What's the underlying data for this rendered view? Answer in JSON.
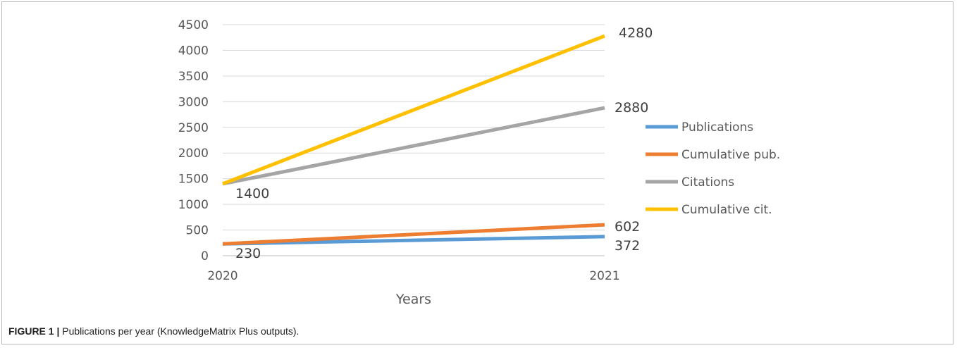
{
  "chart_data": {
    "type": "line",
    "x": [
      "2020",
      "2021"
    ],
    "xlabel": "Years",
    "ylabel": "",
    "ylim": [
      0,
      4500
    ],
    "yticks": [
      0,
      500,
      1000,
      1500,
      2000,
      2500,
      3000,
      3500,
      4000,
      4500
    ],
    "grid": true,
    "legend_position": "right",
    "series": [
      {
        "name": "Publications",
        "values": [
          230,
          372
        ],
        "color": "#5b9bd5",
        "labels": [
          "230",
          "372"
        ]
      },
      {
        "name": "Cumulative pub.",
        "values": [
          230,
          602
        ],
        "color": "#ed7d31",
        "labels": [
          "",
          "602"
        ]
      },
      {
        "name": "Citations",
        "values": [
          1400,
          2880
        ],
        "color": "#a5a5a5",
        "labels": [
          "1400",
          "2880"
        ]
      },
      {
        "name": "Cumulative cit.",
        "values": [
          1400,
          4280
        ],
        "color": "#ffc000",
        "labels": [
          "",
          "4280"
        ]
      }
    ]
  },
  "caption": {
    "label": "FIGURE 1 |",
    "text": " Publications per year (KnowledgeMatrix Plus outputs)."
  }
}
